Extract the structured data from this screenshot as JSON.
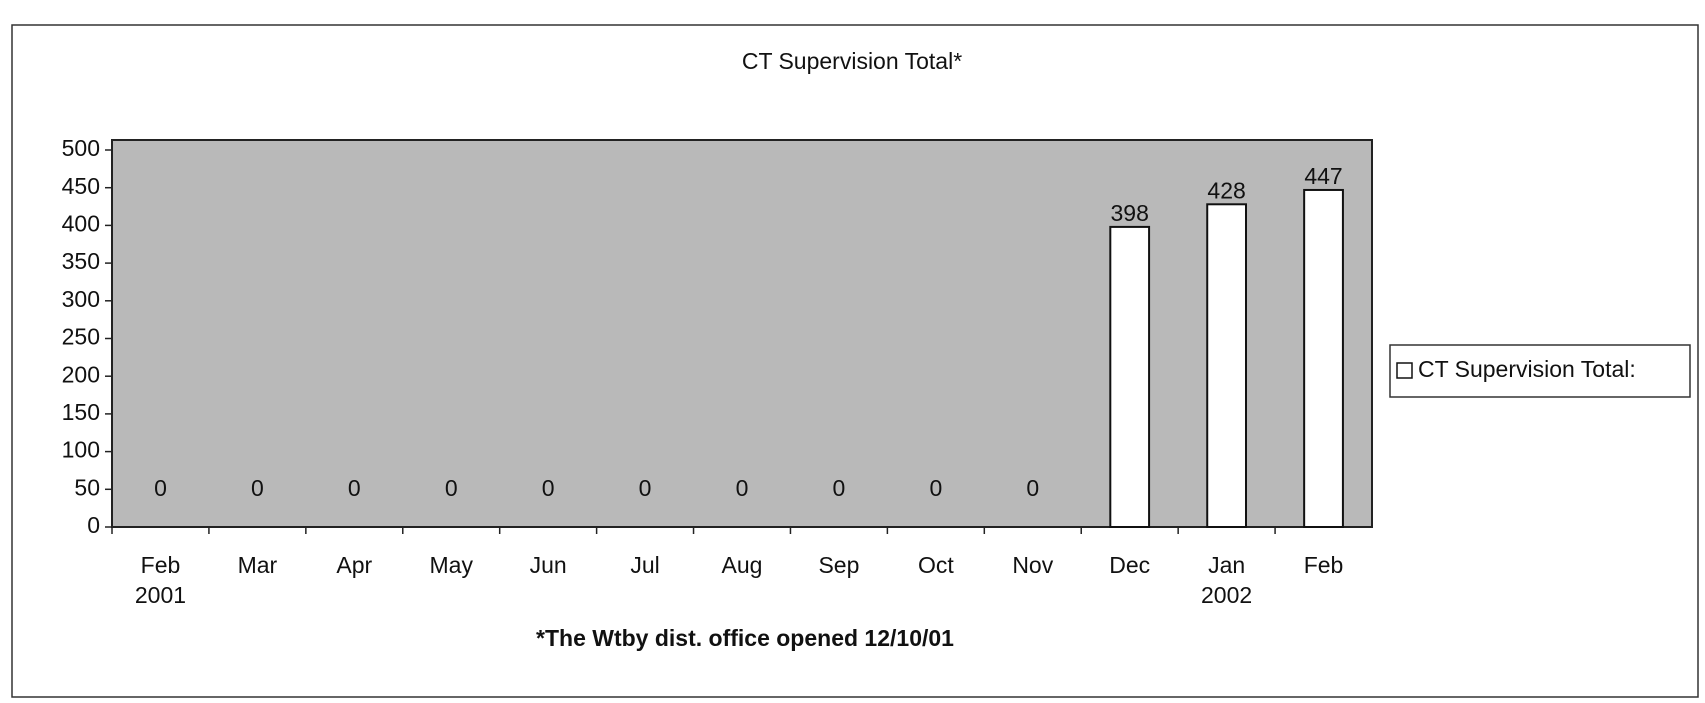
{
  "chart_data": {
    "type": "bar",
    "title": "CT Supervision Total*",
    "categories": [
      "Feb 2001",
      "Mar",
      "Apr",
      "May",
      "Jun",
      "Jul",
      "Aug",
      "Sep",
      "Oct",
      "Nov",
      "Dec",
      "Jan 2002",
      "Feb"
    ],
    "series": [
      {
        "name": "CT Supervision Total:",
        "color": "#ffffff",
        "values": [
          0,
          0,
          0,
          0,
          0,
          0,
          0,
          0,
          0,
          0,
          398,
          428,
          447
        ]
      }
    ],
    "ylim": [
      0,
      500
    ],
    "yticks": [
      0,
      50,
      100,
      150,
      200,
      250,
      300,
      350,
      400,
      450,
      500
    ],
    "annotation": "*The Wtby dist. office opened 12/10/01",
    "legend": "right"
  }
}
